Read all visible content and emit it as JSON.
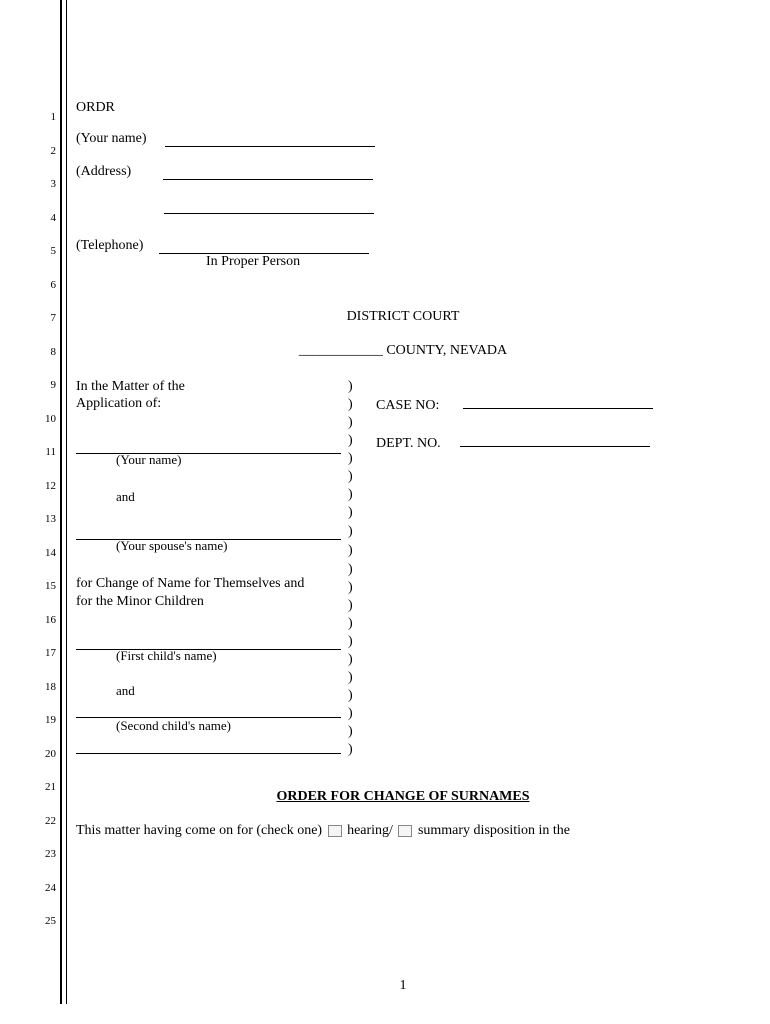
{
  "lineNumbers": {
    "start": 1,
    "end": 25,
    "spacing": 33.5,
    "topOffset": 111
  },
  "header": {
    "code": "ORDR",
    "nameLabel": "(Your name)",
    "addressLabel": "(Address)",
    "telephoneLabel": "(Telephone)",
    "inProPer": "In Proper Person"
  },
  "court": {
    "title": "DISTRICT COURT",
    "countyLine": "____________ COUNTY, NEVADA"
  },
  "caption": {
    "matterLine1": "In the Matter of the",
    "matterLine2": "Application of:",
    "yourName": "(Your name)",
    "and1": "and",
    "spouseName": "(Your spouse's name)",
    "forChange1": "for Change of Name for Themselves and",
    "forChange2": "for the Minor Children",
    "firstChild": "(First child's name)",
    "and2": "and",
    "secondChild": "(Second child's name)",
    "caseNo": "CASE NO:",
    "deptNo": "DEPT. NO."
  },
  "orderTitle": "ORDER FOR CHANGE OF SURNAMES",
  "body": {
    "text1": "This matter having come on for (check one)",
    "text2": "hearing/",
    "text3": "summary disposition in the"
  },
  "pageNumber": "1",
  "layout": {
    "underlineWidth": 210,
    "captionUnderlineWidth": 265,
    "rightUnderlineWidth": 190
  }
}
